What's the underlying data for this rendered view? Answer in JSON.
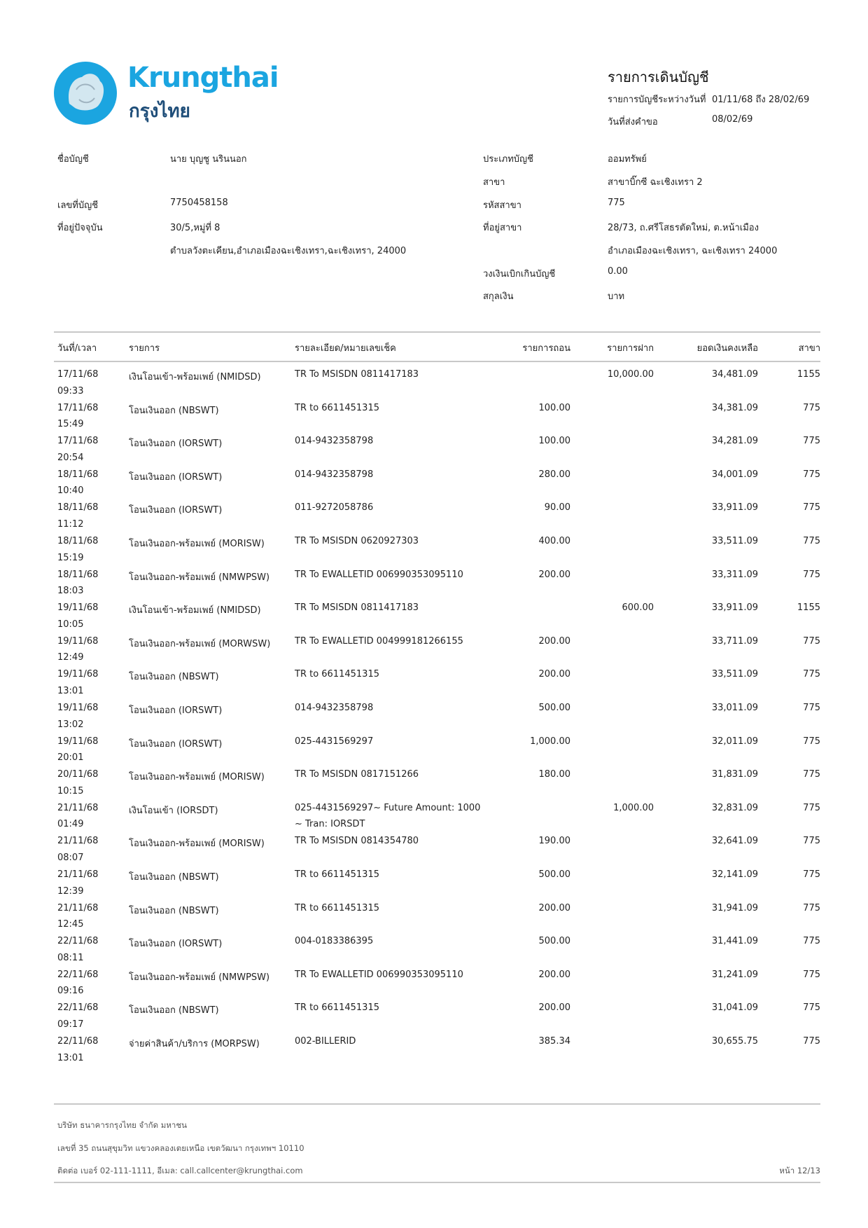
{
  "brand": {
    "name_en": "Krungthai",
    "name_th": "กรุงไทย",
    "color": "#1ba5e0"
  },
  "header": {
    "title": "รายการเดินบัญชี",
    "period_label": "รายการบัญชีระหว่างวันที่",
    "period_value": "01/11/68 ถึง 28/02/69",
    "request_label": "วันที่ส่งคำขอ",
    "request_value": "08/02/69"
  },
  "account_left": {
    "name_label": "ชื่อบัญชี",
    "name_value": "นาย บุญชู นรินนอก",
    "number_label": "เลขที่บัญชี",
    "number_value": "7750458158",
    "address_label": "ที่อยู่ปัจจุบัน",
    "address_line1": "30/5,หมู่ที่  8",
    "address_line2": "ตำบลวังตะเคียน,อำเภอเมืองฉะเชิงเทรา,ฉะเชิงเทรา, 24000"
  },
  "account_right": {
    "type_label": "ประเภทบัญชี",
    "type_value": "ออมทรัพย์",
    "branch_label": "สาขา",
    "branch_value": "สาขาบิ๊กซี ฉะเชิงเทรา 2",
    "branch_code_label": "รหัสสาขา",
    "branch_code_value": "775",
    "branch_addr_label": "ที่อยู่สาขา",
    "branch_addr_line1": "28/73, ถ.ศรีโสธรตัดใหม่, ต.หน้าเมือง",
    "branch_addr_line2": "อำเภอเมืองฉะเชิงเทรา, ฉะเชิงเทรา 24000",
    "overdraft_label": "วงเงินเบิกเกินบัญชี",
    "overdraft_value": "0.00",
    "currency_label": "สกุลเงิน",
    "currency_value": "บาท"
  },
  "table": {
    "columns": [
      "วันที่/เวลา",
      "รายการ",
      "รายละเอียด/หมายเลขเช็ค",
      "รายการถอน",
      "รายการฝาก",
      "ยอดเงินคงเหลือ",
      "สาขา"
    ],
    "rows": [
      {
        "date": "17/11/68",
        "time": "09:33",
        "desc": "เงินโอนเข้า-พร้อมเพย์ (NMIDSD)",
        "detail": "TR To MSISDN 0811417183",
        "detail2": "",
        "withdraw": "",
        "deposit": "10,000.00",
        "balance": "34,481.09",
        "branch": "1155"
      },
      {
        "date": "17/11/68",
        "time": "15:49",
        "desc": "โอนเงินออก (NBSWT)",
        "detail": "TR to 6611451315",
        "detail2": "",
        "withdraw": "100.00",
        "deposit": "",
        "balance": "34,381.09",
        "branch": "775"
      },
      {
        "date": "17/11/68",
        "time": "20:54",
        "desc": "โอนเงินออก (IORSWT)",
        "detail": "014-9432358798",
        "detail2": "",
        "withdraw": "100.00",
        "deposit": "",
        "balance": "34,281.09",
        "branch": "775"
      },
      {
        "date": "18/11/68",
        "time": "10:40",
        "desc": "โอนเงินออก (IORSWT)",
        "detail": "014-9432358798",
        "detail2": "",
        "withdraw": "280.00",
        "deposit": "",
        "balance": "34,001.09",
        "branch": "775"
      },
      {
        "date": "18/11/68",
        "time": "11:12",
        "desc": "โอนเงินออก (IORSWT)",
        "detail": "011-9272058786",
        "detail2": "",
        "withdraw": "90.00",
        "deposit": "",
        "balance": "33,911.09",
        "branch": "775"
      },
      {
        "date": "18/11/68",
        "time": "15:19",
        "desc": "โอนเงินออก-พร้อมเพย์ (MORISW)",
        "detail": "TR To MSISDN 0620927303",
        "detail2": "",
        "withdraw": "400.00",
        "deposit": "",
        "balance": "33,511.09",
        "branch": "775"
      },
      {
        "date": "18/11/68",
        "time": "18:03",
        "desc": "โอนเงินออก-พร้อมเพย์ (NMWPSW)",
        "detail": "TR To EWALLETID 006990353095110",
        "detail2": "",
        "withdraw": "200.00",
        "deposit": "",
        "balance": "33,311.09",
        "branch": "775"
      },
      {
        "date": "19/11/68",
        "time": "10:05",
        "desc": "เงินโอนเข้า-พร้อมเพย์ (NMIDSD)",
        "detail": "TR To MSISDN 0811417183",
        "detail2": "",
        "withdraw": "",
        "deposit": "600.00",
        "balance": "33,911.09",
        "branch": "1155"
      },
      {
        "date": "19/11/68",
        "time": "12:49",
        "desc": "โอนเงินออก-พร้อมเพย์ (MORWSW)",
        "detail": "TR To EWALLETID 004999181266155",
        "detail2": "",
        "withdraw": "200.00",
        "deposit": "",
        "balance": "33,711.09",
        "branch": "775"
      },
      {
        "date": "19/11/68",
        "time": "13:01",
        "desc": "โอนเงินออก (NBSWT)",
        "detail": "TR to 6611451315",
        "detail2": "",
        "withdraw": "200.00",
        "deposit": "",
        "balance": "33,511.09",
        "branch": "775"
      },
      {
        "date": "19/11/68",
        "time": "13:02",
        "desc": "โอนเงินออก (IORSWT)",
        "detail": "014-9432358798",
        "detail2": "",
        "withdraw": "500.00",
        "deposit": "",
        "balance": "33,011.09",
        "branch": "775"
      },
      {
        "date": "19/11/68",
        "time": "20:01",
        "desc": "โอนเงินออก (IORSWT)",
        "detail": "025-4431569297",
        "detail2": "",
        "withdraw": "1,000.00",
        "deposit": "",
        "balance": "32,011.09",
        "branch": "775"
      },
      {
        "date": "20/11/68",
        "time": "10:15",
        "desc": "โอนเงินออก-พร้อมเพย์ (MORISW)",
        "detail": "TR To MSISDN 0817151266",
        "detail2": "",
        "withdraw": "180.00",
        "deposit": "",
        "balance": "31,831.09",
        "branch": "775"
      },
      {
        "date": "21/11/68",
        "time": "01:49",
        "desc": "เงินโอนเข้า (IORSDT)",
        "detail": "025-4431569297~ Future Amount: 1000",
        "detail2": "~ Tran: IORSDT",
        "withdraw": "",
        "deposit": "1,000.00",
        "balance": "32,831.09",
        "branch": "775"
      },
      {
        "date": "21/11/68",
        "time": "08:07",
        "desc": "โอนเงินออก-พร้อมเพย์ (MORISW)",
        "detail": "TR To MSISDN 0814354780",
        "detail2": "",
        "withdraw": "190.00",
        "deposit": "",
        "balance": "32,641.09",
        "branch": "775"
      },
      {
        "date": "21/11/68",
        "time": "12:39",
        "desc": "โอนเงินออก (NBSWT)",
        "detail": "TR to 6611451315",
        "detail2": "",
        "withdraw": "500.00",
        "deposit": "",
        "balance": "32,141.09",
        "branch": "775"
      },
      {
        "date": "21/11/68",
        "time": "12:45",
        "desc": "โอนเงินออก (NBSWT)",
        "detail": "TR to 6611451315",
        "detail2": "",
        "withdraw": "200.00",
        "deposit": "",
        "balance": "31,941.09",
        "branch": "775"
      },
      {
        "date": "22/11/68",
        "time": "08:11",
        "desc": "โอนเงินออก (IORSWT)",
        "detail": "004-0183386395",
        "detail2": "",
        "withdraw": "500.00",
        "deposit": "",
        "balance": "31,441.09",
        "branch": "775"
      },
      {
        "date": "22/11/68",
        "time": "09:16",
        "desc": "โอนเงินออก-พร้อมเพย์ (NMWPSW)",
        "detail": "TR To EWALLETID 006990353095110",
        "detail2": "",
        "withdraw": "200.00",
        "deposit": "",
        "balance": "31,241.09",
        "branch": "775"
      },
      {
        "date": "22/11/68",
        "time": "09:17",
        "desc": "โอนเงินออก (NBSWT)",
        "detail": "TR to 6611451315",
        "detail2": "",
        "withdraw": "200.00",
        "deposit": "",
        "balance": "31,041.09",
        "branch": "775"
      },
      {
        "date": "22/11/68",
        "time": "13:01",
        "desc": "จ่ายค่าสินค้า/บริการ (MORPSW)",
        "detail": "002-BILLERID",
        "detail2": "",
        "withdraw": "385.34",
        "deposit": "",
        "balance": "30,655.75",
        "branch": "775"
      }
    ]
  },
  "footer": {
    "company": "บริษัท ธนาคารกรุงไทย จำกัด มหาชน",
    "address": "เลขที่ 35 ถนนสุขุมวิท แขวงคลองเตยเหนือ เขตวัฒนา กรุงเทพฯ 10110",
    "contact": "ติดต่อ เบอร์ 02-111-1111, อีเมล: call.callcenter@krungthai.com",
    "page": "หน้า 12/13"
  }
}
